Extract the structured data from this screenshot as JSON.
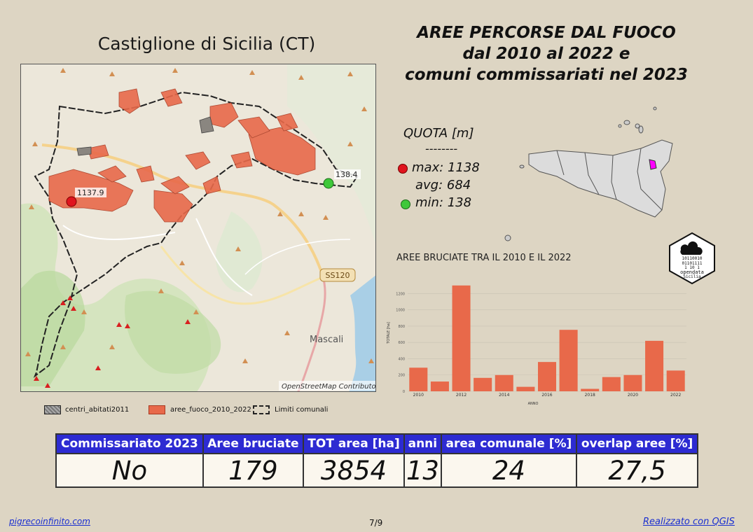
{
  "map": {
    "title": "Castiglione di Sicilia (CT)",
    "attribution": "OpenStreetMap Contributor",
    "road_label": "SS120",
    "town_label": "Mascali",
    "max_marker_label": "1137.9",
    "min_marker_label": "138.4"
  },
  "legend": {
    "items": [
      "centri_abitati2011",
      "aree_fuoco_2010_2022",
      "Limiti comunali"
    ]
  },
  "header": {
    "title_line1": "AREE PERCORSE DAL FUOCO",
    "title_line2": "dal 2010 al 2022 e",
    "title_line3": "comuni commissariati nel 2023"
  },
  "quota": {
    "heading": "QUOTA [m]",
    "divider": "--------",
    "max": "max: 1138",
    "avg": "avg: 684",
    "min": "min: 138"
  },
  "colors": {
    "max": "#e0141e",
    "min": "#3fc83a",
    "fire": "#e8694a",
    "highlight": "#ff00ff",
    "table_header": "#2d2bd2"
  },
  "logo": {
    "lines": [
      "10110010",
      "01101111",
      "1   10 1",
      "opendata",
      "Sicilia"
    ]
  },
  "chart_data": {
    "type": "bar",
    "title": "AREE BRUCIATE TRA IL 2010 E IL 2022",
    "xlabel": "ANNO",
    "ylabel": "TOTALE [ha]",
    "categories": [
      "2010",
      "2011",
      "2012",
      "2013",
      "2014",
      "2015",
      "2016",
      "2017",
      "2018",
      "2019",
      "2020",
      "2021",
      "2022"
    ],
    "x_tick_labels": [
      "2010",
      "2012",
      "2014",
      "2016",
      "2018",
      "2020",
      "2022"
    ],
    "y_tick_labels": [
      "0",
      "200",
      "400",
      "600",
      "800",
      "1000",
      "1200"
    ],
    "values": [
      290,
      120,
      1300,
      165,
      200,
      55,
      360,
      755,
      30,
      175,
      200,
      620,
      255
    ],
    "ylim": [
      0,
      1350
    ],
    "bar_color": "#e8694a"
  },
  "table": {
    "headers": [
      "Commissariato 2023",
      "Aree bruciate",
      "TOT area [ha]",
      "anni",
      "area comunale [%]",
      "overlap aree [%]"
    ],
    "values": [
      "No",
      "179",
      "3854",
      "13",
      "24",
      "27,5"
    ]
  },
  "footer": {
    "left": "pigrecoinfinito.com",
    "page": "7/9",
    "right": "Realizzato con QGIS"
  }
}
